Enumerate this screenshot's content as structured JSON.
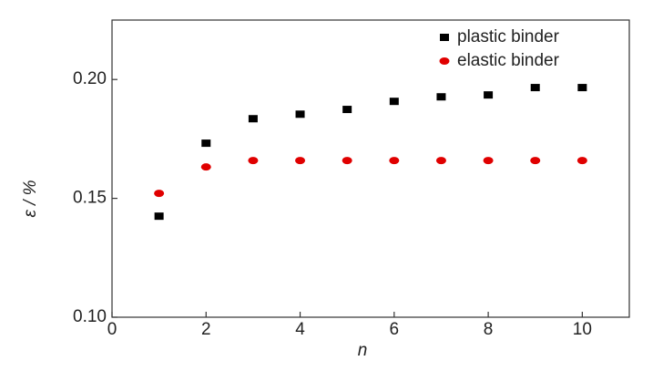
{
  "chart_data": {
    "type": "scatter",
    "x_label": "n",
    "y_label": "ε / %",
    "x": [
      1,
      2,
      3,
      4,
      5,
      6,
      7,
      8,
      9,
      10
    ],
    "series": [
      {
        "name": "plastic binder",
        "color": "#000000",
        "marker": "square",
        "values": [
          0.1425,
          0.1732,
          0.1835,
          0.1854,
          0.1874,
          0.1908,
          0.1927,
          0.1935,
          0.1966,
          0.1966
        ]
      },
      {
        "name": "elastic binder",
        "color": "#e00000",
        "marker": "ellipse",
        "values": [
          0.1521,
          0.1632,
          0.1659,
          0.1659,
          0.1659,
          0.1659,
          0.1659,
          0.1659,
          0.1659,
          0.1659
        ]
      }
    ],
    "xlim": [
      0,
      11
    ],
    "xticks": [
      0,
      2,
      4,
      6,
      8,
      10
    ],
    "ylim": [
      0.1,
      0.225
    ],
    "yticks": [
      {
        "value": 0.1,
        "label": "0.10"
      },
      0.15,
      {
        "value": 0.2,
        "label": "0.20"
      }
    ],
    "legend": "upper right"
  }
}
